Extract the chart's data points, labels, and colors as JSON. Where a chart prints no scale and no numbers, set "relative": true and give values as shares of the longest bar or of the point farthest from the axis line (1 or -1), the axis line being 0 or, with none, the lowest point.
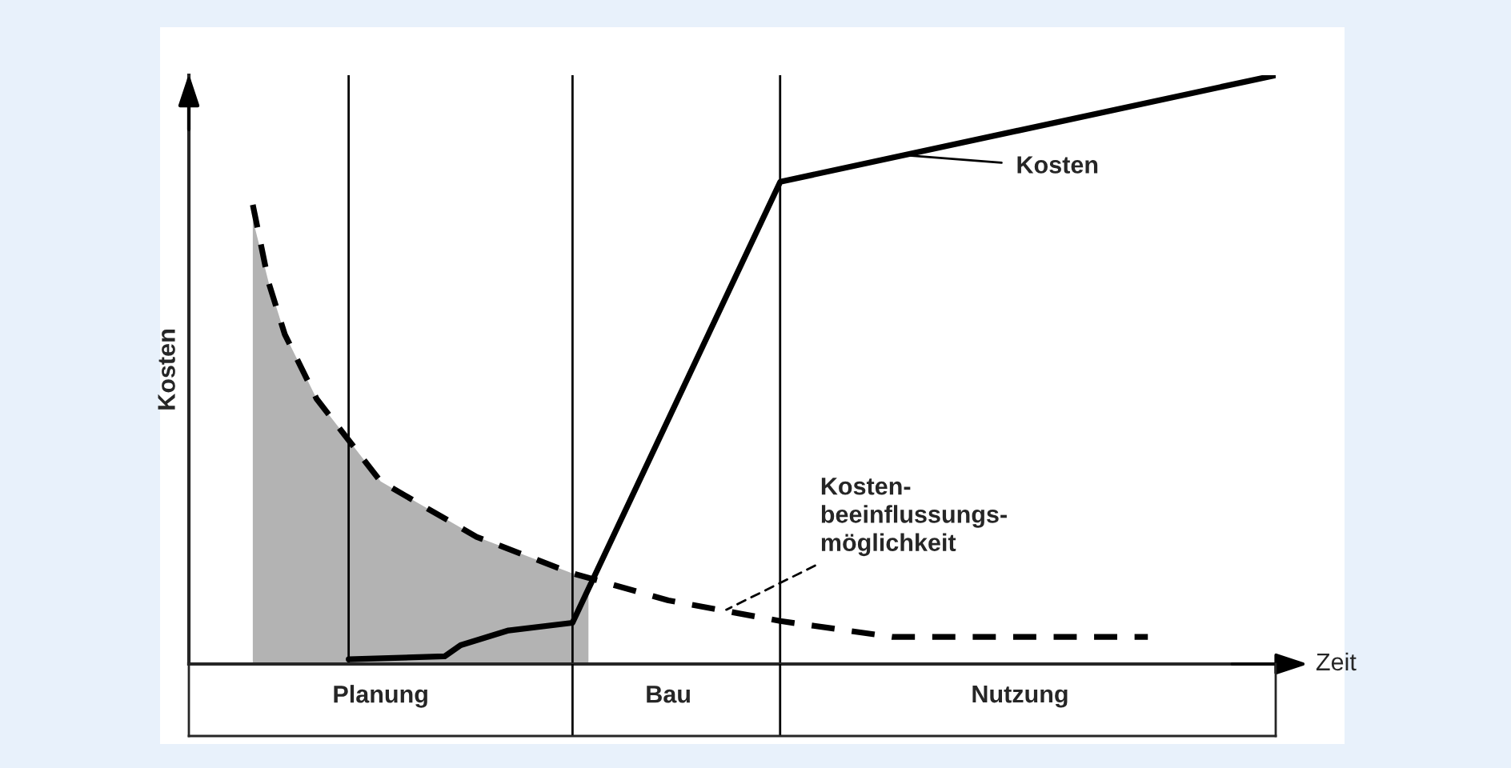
{
  "chart_data": {
    "type": "line",
    "relative": true,
    "xlabel": "Zeit",
    "ylabel": "Kosten",
    "categories": [
      null,
      null,
      null,
      null,
      null,
      null,
      null,
      null,
      null,
      null,
      null,
      null,
      "Planung",
      null,
      null,
      null,
      null,
      null,
      null,
      null,
      null,
      null,
      null,
      null,
      null,
      null,
      null,
      null,
      null,
      null,
      "Bau",
      null,
      null,
      null,
      null,
      null,
      null,
      null,
      null,
      null,
      null,
      null,
      null,
      null,
      null,
      null,
      null,
      null,
      null,
      null,
      null,
      null,
      "Nutzung",
      null,
      null,
      null,
      null,
      null,
      null,
      null,
      null,
      null,
      null,
      null,
      null,
      null,
      null,
      null,
      null
    ],
    "series": [
      {
        "type": "area",
        "color": "#b3b3b3",
        "values": [
          null,
          null,
          null,
          null,
          0.755,
          0.647,
          0.56,
          null,
          0.45,
          null,
          null,
          null,
          0.31,
          null,
          null,
          null,
          null,
          null,
          0.216,
          null,
          null,
          null,
          null,
          null,
          0.154,
          0.15,
          null,
          null,
          null,
          null,
          null,
          null,
          null,
          null,
          null,
          null,
          null,
          null,
          null,
          null,
          null,
          null,
          null,
          null,
          null,
          null,
          null,
          null,
          null,
          null,
          null,
          null,
          null,
          null,
          null,
          null,
          null,
          null,
          null,
          null,
          null,
          null,
          null,
          null,
          null,
          null,
          null,
          null,
          null
        ]
      },
      {
        "name": "Kosten",
        "color": "#000000",
        "line_style": "solid",
        "values": [
          null,
          null,
          null,
          null,
          null,
          null,
          null,
          null,
          null,
          null,
          0.008,
          null,
          null,
          null,
          null,
          null,
          0.013,
          0.032,
          null,
          null,
          0.057,
          null,
          null,
          null,
          0.07,
          null,
          null,
          null,
          null,
          null,
          null,
          null,
          null,
          null,
          null,
          null,
          null,
          0.819,
          null,
          null,
          null,
          null,
          null,
          null,
          null,
          null,
          null,
          null,
          null,
          null,
          null,
          null,
          null,
          null,
          null,
          null,
          null,
          null,
          null,
          null,
          null,
          null,
          null,
          null,
          null,
          null,
          null,
          null,
          1.0
        ]
      },
      {
        "name": "Kosten-\nbeeinflussungs-\nmöglichkeit",
        "color": "#000000",
        "line_style": "dashed",
        "values": [
          null,
          null,
          null,
          null,
          0.78,
          0.647,
          0.56,
          null,
          0.45,
          null,
          null,
          null,
          0.31,
          null,
          null,
          null,
          null,
          null,
          0.216,
          null,
          null,
          null,
          null,
          null,
          0.154,
          null,
          null,
          null,
          null,
          null,
          0.108,
          null,
          null,
          null,
          null,
          null,
          null,
          0.073,
          null,
          null,
          null,
          null,
          null,
          null,
          0.046,
          null,
          null,
          null,
          null,
          null,
          null,
          null,
          0.046,
          null,
          null,
          null,
          null,
          null,
          null,
          null,
          0.046,
          null,
          null,
          null,
          null,
          null,
          null,
          null,
          null
        ]
      }
    ]
  }
}
